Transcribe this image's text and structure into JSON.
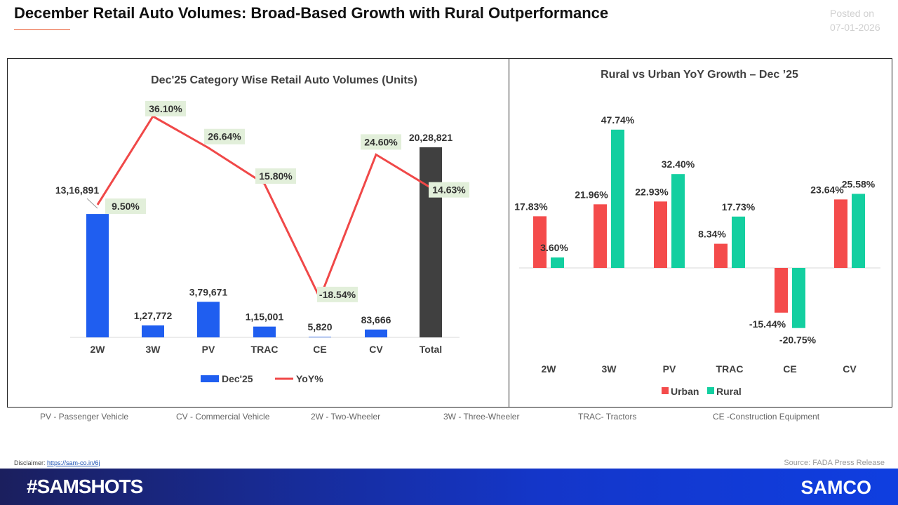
{
  "header": {
    "title": "December Retail Auto Volumes: Broad-Based Growth with Rural Outperformance",
    "posted_label": "Posted on",
    "posted_date": "07-01-2026"
  },
  "chart_data": [
    {
      "type": "bar+line",
      "title": "Dec'25 Category Wise Retail Auto Volumes (Units)",
      "categories": [
        "2W",
        "3W",
        "PV",
        "TRAC",
        "CE",
        "CV",
        "Total"
      ],
      "series": [
        {
          "name": "Dec'25",
          "type": "bar",
          "values": [
            1316891,
            127772,
            379671,
            115001,
            5820,
            83666,
            2028821
          ],
          "labels": [
            "13,16,891",
            "1,27,772",
            "3,79,671",
            "1,15,001",
            "5,820",
            "83,666",
            "20,28,821"
          ],
          "color": "#1f5ef0",
          "total_color": "#404040"
        },
        {
          "name": "YoY%",
          "type": "line",
          "values": [
            9.5,
            36.1,
            26.64,
            15.8,
            -18.54,
            24.6,
            14.63
          ],
          "labels": [
            "9.50%",
            "36.10%",
            "26.64%",
            "15.80%",
            "-18.54%",
            "24.60%",
            "14.63%"
          ],
          "color": "#f04848"
        }
      ],
      "legend": "bottom",
      "grid": false
    },
    {
      "type": "bar",
      "title": "Rural vs Urban YoY Growth – Dec ’25",
      "categories": [
        "2W",
        "3W",
        "PV",
        "TRAC",
        "CE",
        "CV"
      ],
      "series": [
        {
          "name": "Urban",
          "values": [
            17.83,
            21.96,
            22.93,
            8.34,
            -15.44,
            23.64
          ],
          "labels": [
            "17.83%",
            "21.96%",
            "22.93%",
            "8.34%",
            "-15.44%",
            "23.64%"
          ],
          "color": "#f44b4b"
        },
        {
          "name": "Rural",
          "values": [
            3.6,
            47.74,
            32.4,
            17.73,
            -20.75,
            25.58
          ],
          "labels": [
            "3.60%",
            "47.74%",
            "32.40%",
            "17.73%",
            "-20.75%",
            "25.58%"
          ],
          "color": "#13cfa0"
        }
      ],
      "legend": "bottom",
      "grid": false
    }
  ],
  "abbreviations": [
    "PV - Passenger Vehicle",
    "CV - Commercial Vehicle",
    "2W - Two-Wheeler",
    "3W - Three-Wheeler",
    "TRAC- Tractors",
    "CE -Construction Equipment"
  ],
  "footer": {
    "disclaimer_label": "Disclaimer:",
    "disclaimer_link": "https://sam-co.in/6j",
    "source": "Source: FADA Press Release",
    "hashtag": "#SAMSHOTS",
    "logo": "SAMCO"
  }
}
